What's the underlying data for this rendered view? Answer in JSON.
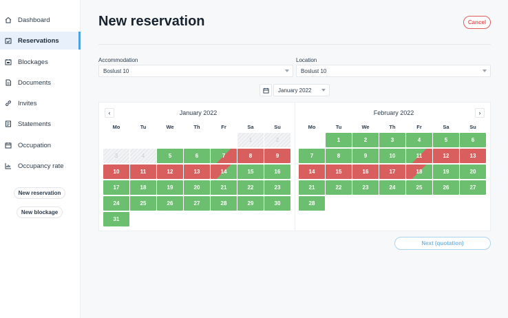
{
  "sidebar": {
    "items": [
      {
        "label": "Dashboard",
        "icon": "home-icon"
      },
      {
        "label": "Reservations",
        "icon": "calendar-check-icon",
        "active": true
      },
      {
        "label": "Blockages",
        "icon": "calendar-block-icon"
      },
      {
        "label": "Documents",
        "icon": "document-icon"
      },
      {
        "label": "Invites",
        "icon": "link-icon"
      },
      {
        "label": "Statements",
        "icon": "statement-icon"
      },
      {
        "label": "Occupation",
        "icon": "calendar-icon"
      },
      {
        "label": "Occupancy rate",
        "icon": "chart-icon"
      }
    ],
    "new_reservation": "New reservation",
    "new_blockage": "New blockage"
  },
  "header": {
    "title": "New reservation",
    "cancel": "Cancel"
  },
  "form": {
    "accommodation_label": "Accommodation",
    "accommodation_value": "Boslust 10",
    "location_label": "Location",
    "location_value": "Boslust 10",
    "month_value": "January 2022"
  },
  "calendar": {
    "weekdays": [
      "Mo",
      "Tu",
      "We",
      "Th",
      "Fr",
      "Sa",
      "Su"
    ],
    "months": [
      {
        "title": "January 2022",
        "start_offset": 5,
        "days": 31,
        "past": [
          1,
          2,
          3,
          4
        ],
        "booked": [
          8,
          9,
          10,
          11,
          12,
          13
        ],
        "checkin": [
          7
        ],
        "checkout": [
          14
        ]
      },
      {
        "title": "February 2022",
        "start_offset": 1,
        "days": 28,
        "past": [],
        "booked": [
          12,
          13,
          14,
          15,
          16,
          17
        ],
        "checkin": [
          11
        ],
        "checkout": [
          18
        ]
      }
    ],
    "colors": {
      "free": "#6bbf6e",
      "booked": "#d95f5f"
    }
  },
  "footer": {
    "next": "Next (quotation)"
  }
}
